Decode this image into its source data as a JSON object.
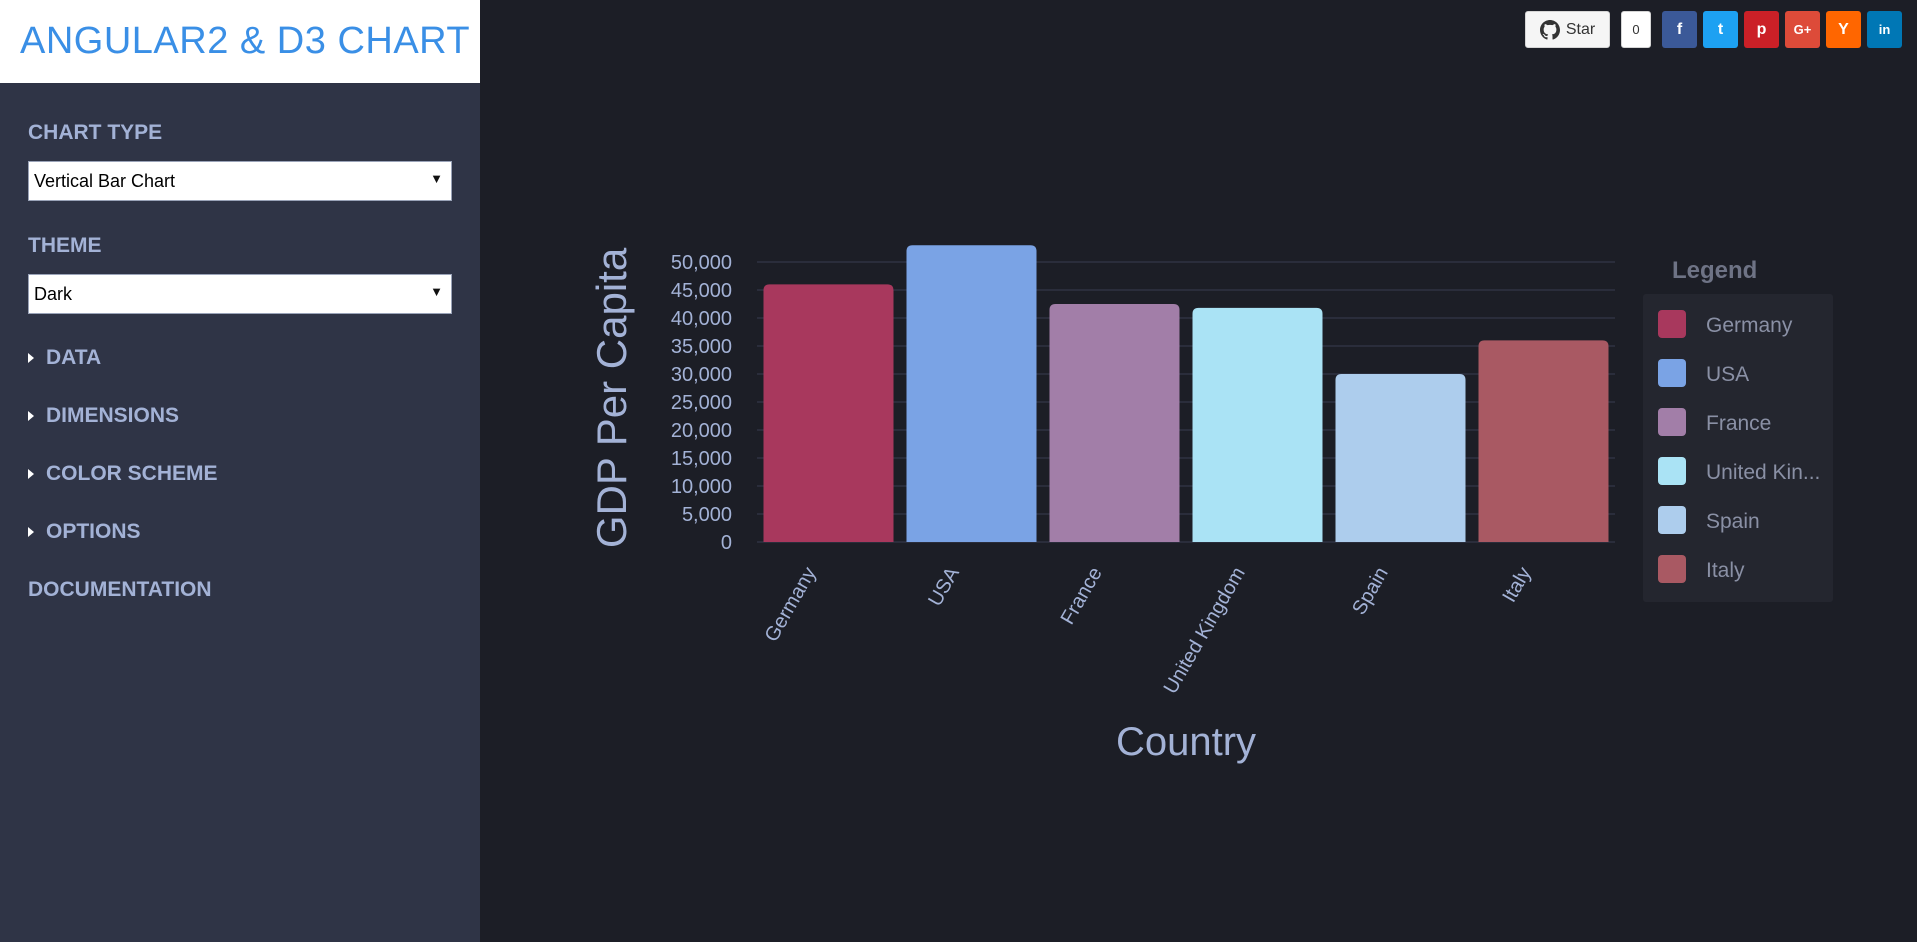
{
  "brand": {
    "title": "ANGULAR2 & D3 CHART"
  },
  "sidebar": {
    "chart_type_label": "CHART TYPE",
    "chart_type_value": "Vertical Bar Chart",
    "theme_label": "THEME",
    "theme_value": "Dark",
    "sections": [
      "DATA",
      "DIMENSIONS",
      "COLOR SCHEME",
      "OPTIONS"
    ],
    "documentation": "DOCUMENTATION"
  },
  "social": {
    "star_label": "Star",
    "star_count": "0",
    "buttons": [
      {
        "name": "facebook",
        "glyph": "f",
        "color": "#3b5998"
      },
      {
        "name": "twitter",
        "glyph": "t",
        "color": "#1da1f2"
      },
      {
        "name": "pinterest",
        "glyph": "p",
        "color": "#cb2027"
      },
      {
        "name": "google-plus",
        "glyph": "G+",
        "color": "#dd4b39"
      },
      {
        "name": "hacker-news",
        "glyph": "Y",
        "color": "#ff6600"
      },
      {
        "name": "linkedin",
        "glyph": "in",
        "color": "#0077b5"
      }
    ]
  },
  "chart_data": {
    "type": "bar",
    "categories": [
      "Germany",
      "USA",
      "France",
      "United Kingdom",
      "Spain",
      "Italy"
    ],
    "values": [
      46000,
      53000,
      42500,
      41800,
      30000,
      36000
    ],
    "colors": [
      "#a8385d",
      "#7aa3e5",
      "#a27ea8",
      "#aae3f5",
      "#adcded",
      "#a95963"
    ],
    "xlabel": "Country",
    "ylabel": "GDP Per Capita",
    "yticks": [
      "0",
      "5,000",
      "10,000",
      "15,000",
      "20,000",
      "25,000",
      "30,000",
      "35,000",
      "40,000",
      "45,000",
      "50,000"
    ],
    "ylim": [
      0,
      53000
    ],
    "legend_title": "Legend",
    "legend_labels": [
      "Germany",
      "USA",
      "France",
      "United Kin...",
      "Spain",
      "Italy"
    ],
    "legend_position": "right",
    "grid": true
  }
}
